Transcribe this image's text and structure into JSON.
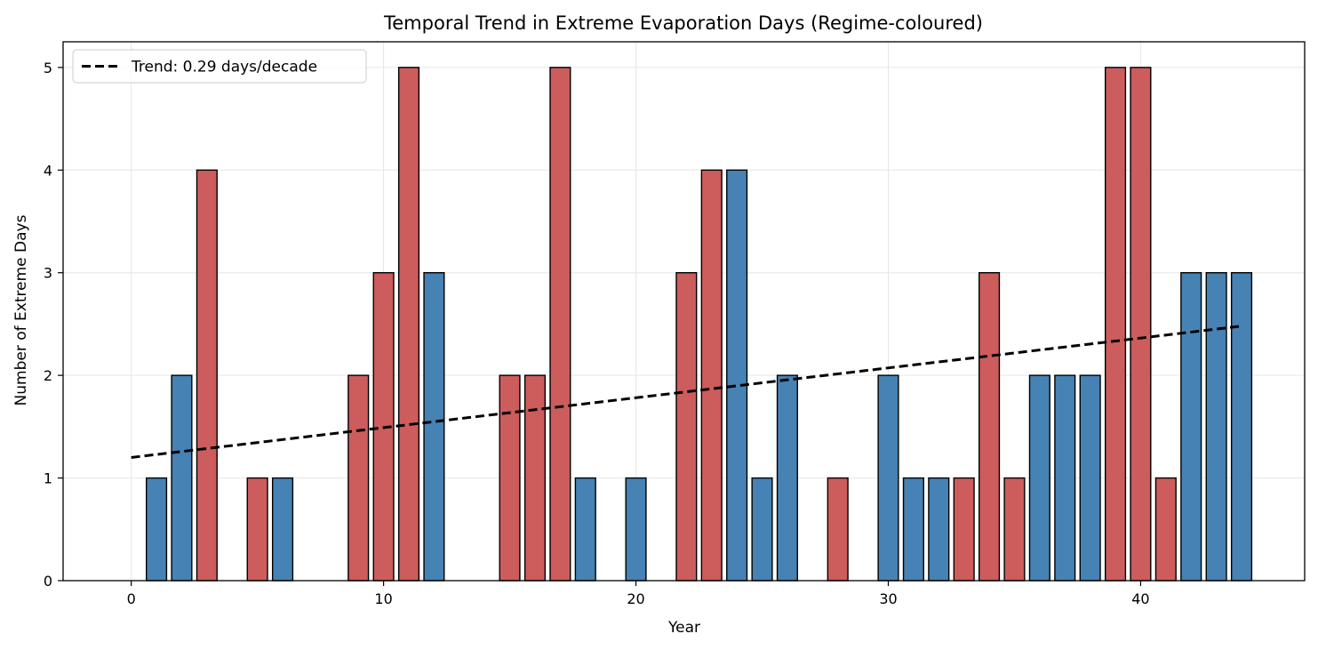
{
  "chart_data": {
    "type": "bar",
    "title": "Temporal Trend in Extreme Evaporation Days (Regime-coloured)",
    "xlabel": "Year",
    "ylabel": "Number of Extreme Days",
    "xlim": [
      -2.7,
      46.5
    ],
    "ylim": [
      0,
      5.25
    ],
    "x_ticks": [
      0,
      10,
      20,
      30,
      40
    ],
    "y_ticks": [
      0,
      1,
      2,
      3,
      4,
      5
    ],
    "grid": true,
    "legend_position": "top-left",
    "colors": {
      "regime_red": "#cd5c5c",
      "regime_blue": "#4682b4",
      "edge": "#000000",
      "trend": "#000000",
      "grid": "#e6e6e6"
    },
    "x": [
      0,
      1,
      2,
      3,
      4,
      5,
      6,
      7,
      8,
      9,
      10,
      11,
      12,
      13,
      14,
      15,
      16,
      17,
      18,
      19,
      20,
      21,
      22,
      23,
      24,
      25,
      26,
      27,
      28,
      29,
      30,
      31,
      32,
      33,
      34,
      35,
      36,
      37,
      38,
      39,
      40,
      41,
      42,
      43,
      44
    ],
    "values": [
      0,
      1,
      2,
      4,
      0,
      1,
      1,
      0,
      0,
      2,
      3,
      5,
      3,
      0,
      0,
      2,
      2,
      5,
      1,
      0,
      1,
      0,
      3,
      4,
      4,
      1,
      2,
      0,
      1,
      0,
      2,
      1,
      1,
      1,
      3,
      1,
      2,
      2,
      2,
      5,
      5,
      1,
      3,
      3,
      3
    ],
    "regime": [
      "blue",
      "blue",
      "blue",
      "red",
      "red",
      "red",
      "blue",
      "blue",
      "red",
      "red",
      "red",
      "red",
      "blue",
      "blue",
      "red",
      "red",
      "red",
      "red",
      "blue",
      "blue",
      "blue",
      "red",
      "red",
      "red",
      "blue",
      "blue",
      "blue",
      "red",
      "red",
      "blue",
      "blue",
      "blue",
      "blue",
      "red",
      "red",
      "red",
      "blue",
      "blue",
      "blue",
      "red",
      "red",
      "red",
      "blue",
      "blue",
      "blue"
    ],
    "trend": {
      "label": "Trend: 0.29 days/decade",
      "x": [
        0,
        44
      ],
      "y": [
        1.2,
        2.48
      ]
    }
  }
}
